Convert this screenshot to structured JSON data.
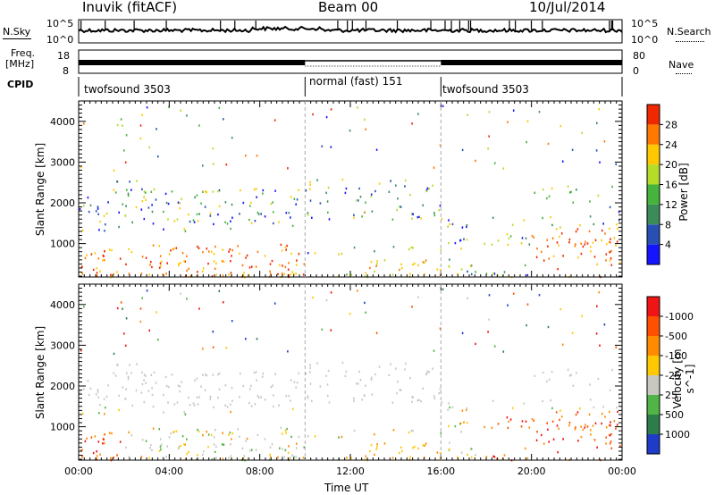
{
  "header": {
    "station": "Inuvik (fitACF)",
    "beam": "Beam 00",
    "date": "10/Jul/2014"
  },
  "top_panels": {
    "nsky_label": "N.Sky",
    "nsky_ticks": [
      "10^5",
      "10^0"
    ],
    "nsearch_ticks": [
      "10^5",
      "10^0"
    ],
    "nsearch_label": "N.Search",
    "freq_label_1": "Freq.",
    "freq_label_2": "[MHz]",
    "freq_ticks": [
      "18",
      "8"
    ],
    "nave_ticks": [
      "80",
      "0"
    ],
    "nave_label": "Nave",
    "cpid_label": "CPID",
    "cpid_segments": [
      {
        "label": "twofsound 3503",
        "start": 0,
        "end": 10
      },
      {
        "label": "normal (fast) 151",
        "start": 10,
        "end": 16
      },
      {
        "label": "twofsound 3503",
        "start": 16,
        "end": 24
      }
    ]
  },
  "chart_data": [
    {
      "type": "heatmap",
      "name": "power",
      "xlabel": "",
      "ylabel": "Slant Range [km]",
      "x_range_hours": [
        0,
        24
      ],
      "ylim": [
        180,
        4500
      ],
      "yticks": [
        1000,
        2000,
        3000,
        4000
      ],
      "colorbar": {
        "label": "Power [dB]",
        "range": [
          0,
          32
        ],
        "ticks": [
          4,
          8,
          12,
          16,
          20,
          24,
          28
        ],
        "colors": [
          "#1414ff",
          "#2850b4",
          "#3c8c5a",
          "#46b43c",
          "#b4dc28",
          "#ffc800",
          "#ff7800",
          "#f02800"
        ]
      }
    },
    {
      "type": "heatmap",
      "name": "velocity",
      "xlabel": "Time UT",
      "ylabel": "Slant Range [km]",
      "x_range_hours": [
        0,
        24
      ],
      "xticks": [
        "00:00",
        "04:00",
        "08:00",
        "12:00",
        "16:00",
        "20:00",
        "00:00"
      ],
      "ylim": [
        180,
        4500
      ],
      "yticks": [
        1000,
        2000,
        3000,
        4000
      ],
      "colorbar": {
        "label": "Velocity [m s^-1]",
        "ticks": [
          "1000",
          "500",
          "25",
          "-25",
          "-100",
          "-500",
          "-1000"
        ],
        "colors": [
          "#1e3cc8",
          "#2d7d4b",
          "#50b446",
          "#c8c8c0",
          "#ffc800",
          "#ff8c00",
          "#ff5000",
          "#f01414"
        ]
      }
    }
  ]
}
